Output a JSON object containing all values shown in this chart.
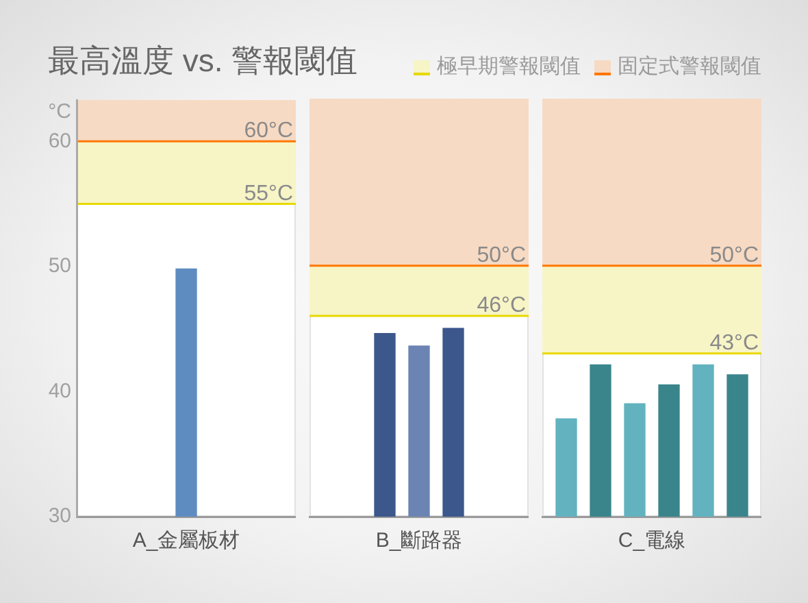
{
  "chart_data": [
    {
      "type": "bar",
      "title": "最高溫度 vs. 警報閾值",
      "ylabel": "°C",
      "xlabel": "A_金屬板材",
      "categories": [
        null
      ],
      "values": [
        49.8
      ],
      "colors": [
        "#5f8cc0"
      ],
      "ylim": [
        30,
        63.3
      ],
      "yticks": [
        30,
        40,
        50,
        60
      ],
      "tick_labels": "y",
      "legend": "top right",
      "ref_lines": [
        {
          "axis": "y",
          "value": 55,
          "label": "55°C",
          "color": "#e8d800"
        },
        {
          "axis": "y",
          "value": 60,
          "label": "60°C",
          "color": "#ff7700"
        }
      ],
      "bands": [
        {
          "axis": "y",
          "from": 55,
          "to": 60,
          "label": "極早期警報閾值",
          "color": "#f7f5c6"
        },
        {
          "axis": "y",
          "from": 60,
          "to": 63.3,
          "label": "固定式警報閾值",
          "color": "#f7dac3"
        }
      ]
    },
    {
      "type": "bar",
      "xlabel": "B_斷路器",
      "categories": [
        null,
        null,
        null
      ],
      "values": [
        44.6,
        43.6,
        45.0
      ],
      "colors": [
        "#3c578c",
        "#6b84b3",
        "#3c578c"
      ],
      "ylim": [
        30,
        63.3
      ],
      "yticks": [
        30,
        40,
        50,
        60
      ],
      "tick_labels": false,
      "ref_lines": [
        {
          "axis": "y",
          "value": 46,
          "label": "46°C",
          "color": "#e8d800"
        },
        {
          "axis": "y",
          "value": 50,
          "label": "50°C",
          "color": "#ff7700"
        }
      ],
      "bands": [
        {
          "axis": "y",
          "from": 46,
          "to": 50,
          "color": "#f7f5c6"
        },
        {
          "axis": "y",
          "from": 50,
          "to": 63.3,
          "color": "#f7dac3"
        }
      ]
    },
    {
      "type": "bar",
      "xlabel": "C_電線",
      "categories": [
        null,
        null,
        null,
        null,
        null,
        null
      ],
      "values": [
        37.8,
        42.1,
        39.0,
        40.5,
        42.1,
        41.3
      ],
      "colors": [
        "#62b2bf",
        "#3a858c",
        "#62b2bf",
        "#3a858c",
        "#62b2bf",
        "#3a858c"
      ],
      "ylim": [
        30,
        63.3
      ],
      "yticks": [
        30,
        40,
        50,
        60
      ],
      "tick_labels": false,
      "ref_lines": [
        {
          "axis": "y",
          "value": 43,
          "label": "43°C",
          "color": "#e8d800"
        },
        {
          "axis": "y",
          "value": 50,
          "label": "50°C",
          "color": "#ff7700"
        }
      ],
      "bands": [
        {
          "axis": "y",
          "from": 43,
          "to": 50,
          "color": "#f7f5c6"
        },
        {
          "axis": "y",
          "from": 50,
          "to": 63.3,
          "color": "#f7dac3"
        }
      ]
    }
  ]
}
